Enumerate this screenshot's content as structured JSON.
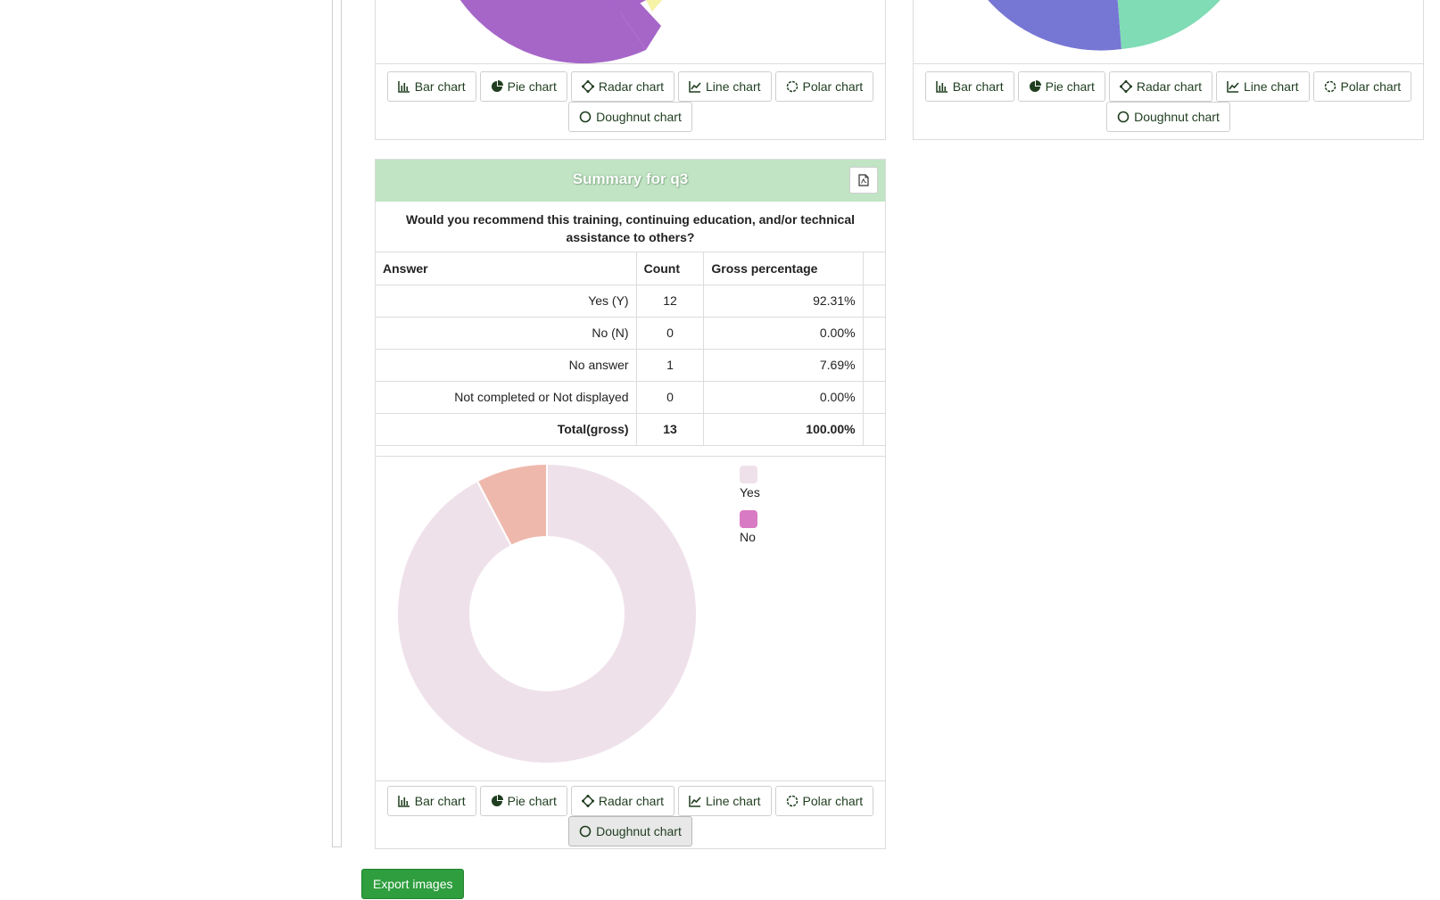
{
  "chart_buttons": {
    "bar": "Bar chart",
    "pie": "Pie chart",
    "radar": "Radar chart",
    "line": "Line chart",
    "polar": "Polar chart",
    "doughnut": "Doughnut chart"
  },
  "summary": {
    "title": "Summary for q3",
    "pdf_icon": "file-pdf-icon",
    "question": "Would you recommend this training, continuing education, and/or technical assistance to others?",
    "headers": {
      "answer": "Answer",
      "count": "Count",
      "percentage": "Gross percentage"
    },
    "rows": [
      {
        "answer": "Yes (Y)",
        "count": "12",
        "percentage": "92.31%"
      },
      {
        "answer": "No (N)",
        "count": "0",
        "percentage": "0.00%"
      },
      {
        "answer": "No answer",
        "count": "1",
        "percentage": "7.69%"
      },
      {
        "answer": "Not completed or Not displayed",
        "count": "0",
        "percentage": "0.00%"
      }
    ],
    "total": {
      "answer": "Total(gross)",
      "count": "13",
      "percentage": "100.00%"
    },
    "legend": [
      {
        "label": "Yes",
        "color": "#efe1ea"
      },
      {
        "label": "No",
        "color": "#d97bc4"
      }
    ]
  },
  "chart_data": [
    {
      "type": "pie",
      "variant": "doughnut",
      "labels": [
        "Yes",
        "No",
        "No answer"
      ],
      "values": [
        12,
        0,
        1
      ],
      "colors": [
        "#efe1ea",
        "#d97bc4",
        "#efb8ad"
      ],
      "legend_position": "right"
    }
  ],
  "colors": {
    "header_bg": "#c1e4c4",
    "export_btn": "#2e9e3e",
    "top_left_pie": "#a566c8",
    "top_right_pie_a": "#7676d4",
    "top_right_pie_b": "#7fdcb5"
  },
  "export_label": "Export images"
}
